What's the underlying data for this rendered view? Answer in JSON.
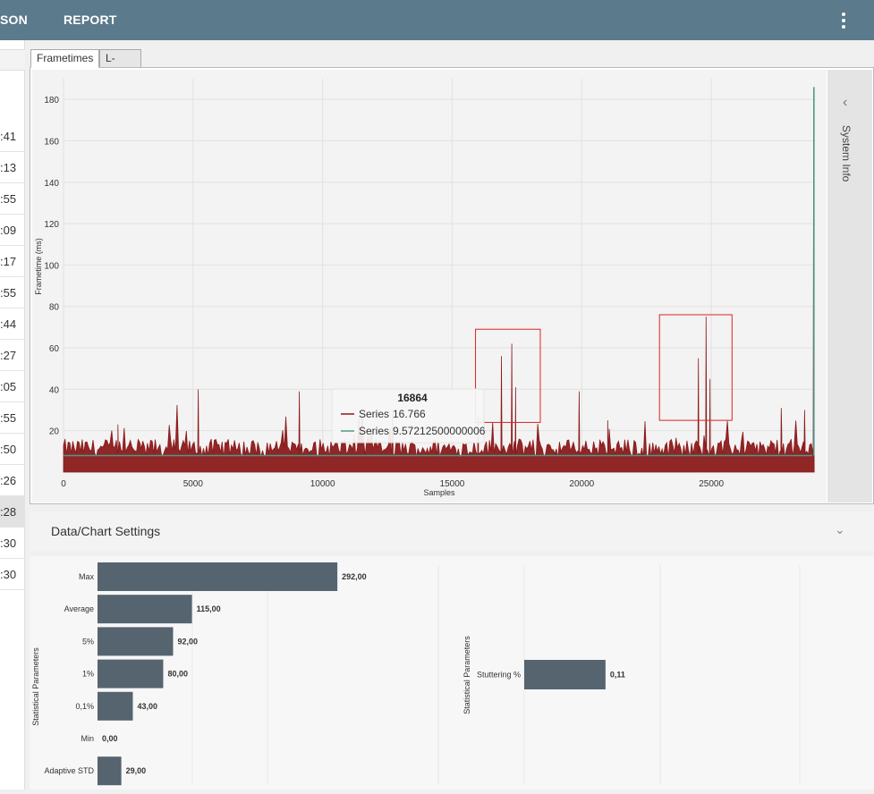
{
  "topbar": {
    "items": [
      "SON",
      "REPORT"
    ],
    "menu_icon": "kebab-menu-icon"
  },
  "left_list": {
    "rows": [
      ":41",
      ":13",
      ":55",
      ":09",
      ":17",
      ":55",
      ":44",
      ":27",
      ":05",
      ":55",
      ":50",
      ":26",
      ":28",
      ":30",
      ":30"
    ],
    "selected_index": 12
  },
  "tabs": [
    {
      "label": "Frametimes",
      "active": true
    },
    {
      "label": "L-shape",
      "active": false
    }
  ],
  "system_info": {
    "label": "System Info",
    "icon": "chevron-left-icon"
  },
  "settings": {
    "title": "Data/Chart Settings",
    "icon": "chevron-down-icon"
  },
  "chart_data": [
    {
      "type": "line",
      "title": "",
      "xlabel": "Samples",
      "ylabel": "Frametime (ms)",
      "xlim": [
        0,
        29000
      ],
      "ylim": [
        0,
        190
      ],
      "xticks": [
        0,
        5000,
        10000,
        15000,
        20000,
        25000
      ],
      "yticks": [
        20,
        40,
        60,
        80,
        100,
        120,
        140,
        160,
        180
      ],
      "grid": true,
      "series": [
        {
          "name": "Series",
          "color": "#8b1a1a",
          "baseline": 7,
          "noise_range": [
            0,
            9
          ],
          "spikes": [
            [
              2100,
              23
            ],
            [
              5200,
              40
            ],
            [
              9100,
              39
            ],
            [
              12700,
              30
            ],
            [
              16000,
              28
            ],
            [
              16900,
              56
            ],
            [
              17300,
              62
            ],
            [
              17450,
              41
            ],
            [
              19900,
              39
            ],
            [
              21000,
              25
            ],
            [
              24500,
              55
            ],
            [
              24800,
              75
            ],
            [
              24950,
              45
            ],
            [
              27700,
              31
            ],
            [
              28600,
              30
            ],
            [
              28950,
              185
            ]
          ]
        },
        {
          "name": "Series",
          "color": "#4a9a8a",
          "baseline": 8,
          "spikes": [
            [
              28960,
              186
            ]
          ]
        }
      ],
      "tooltip": {
        "title": "16864",
        "rows": [
          {
            "series": "Series",
            "value": "16.766",
            "color": "#8b1a1a"
          },
          {
            "series": "Series",
            "value": "9.57212500000006",
            "color": "#4a9a8a"
          }
        ]
      },
      "highlights": [
        {
          "x_range": [
            15900,
            18400
          ],
          "y_range": [
            24,
            69
          ]
        },
        {
          "x_range": [
            23000,
            25800
          ],
          "y_range": [
            25,
            76
          ]
        }
      ]
    },
    {
      "type": "bar",
      "orientation": "horizontal",
      "title": "",
      "ylabel": "Statistical Parameters",
      "categories": [
        "Max",
        "Average",
        "5%",
        "1%",
        "0,1%",
        "Min",
        "Adaptive STD"
      ],
      "values": [
        292.0,
        115.0,
        92.0,
        80.0,
        43.0,
        0.0,
        29.0
      ],
      "labels": [
        "292,00",
        "115,00",
        "92,00",
        "80,00",
        "43,00",
        "0,00",
        "29,00"
      ],
      "xlim": [
        0,
        330
      ],
      "color": "#55646f"
    },
    {
      "type": "bar",
      "orientation": "horizontal",
      "title": "",
      "ylabel": "Statistical Parameters",
      "categories": [
        "Stuttering %"
      ],
      "values": [
        0.11
      ],
      "labels": [
        "0,11"
      ],
      "xlim": [
        0,
        0.5
      ],
      "color": "#55646f"
    }
  ]
}
